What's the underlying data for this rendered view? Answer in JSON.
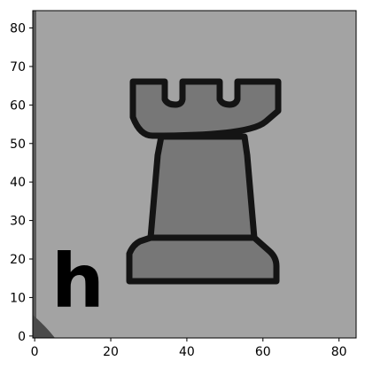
{
  "image": {
    "file_letter": "h",
    "piece_icon": "chess-rook-icon",
    "colors": {
      "board_square": "#a3a3a3",
      "piece_fill": "#777777",
      "piece_outline": "#141414",
      "letter": "#f0f0f0",
      "corner_shadow": "#4a4a4a",
      "left_edge_shadow": "#5a5a5a"
    }
  },
  "axes": {
    "x": {
      "range": [
        -0.5,
        84.5
      ],
      "ticks": [
        0,
        20,
        40,
        60,
        80
      ],
      "tick_labels": [
        "0",
        "20",
        "40",
        "60",
        "80"
      ]
    },
    "y": {
      "range": [
        84.5,
        -0.5
      ],
      "ticks": [
        0,
        10,
        20,
        30,
        40,
        50,
        60,
        70,
        80
      ],
      "tick_labels": [
        "0",
        "10",
        "20",
        "30",
        "40",
        "50",
        "60",
        "70",
        "80"
      ]
    }
  }
}
